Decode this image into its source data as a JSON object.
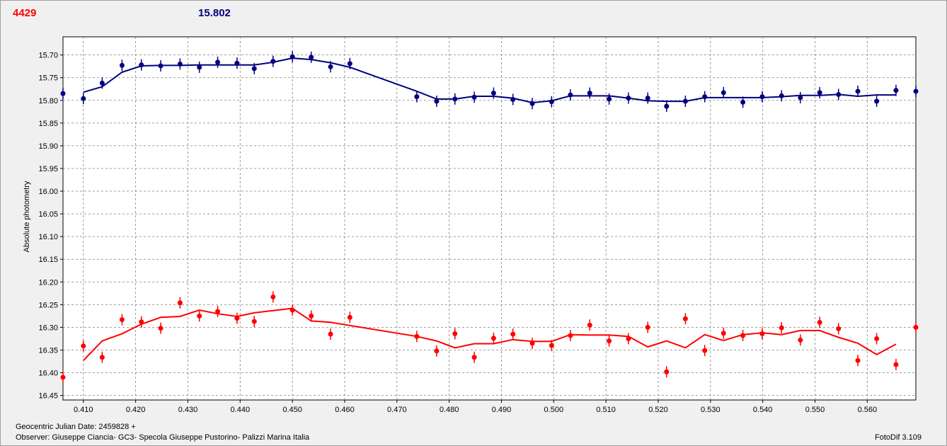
{
  "header": {
    "left_value": "4429",
    "right_value": "15.802"
  },
  "footer": {
    "date_line": "Geocentric Julian Date: 2459828 +",
    "observer_line": "Observer: Giuseppe Ciancia- GC3- Specola Giuseppe Pustorino- Palizzi Marina Italia",
    "software": "FotoDif 3.109"
  },
  "colors": {
    "blue": "#000080",
    "red": "#ff0000",
    "grid": "#808080"
  },
  "chart_data": {
    "type": "scatter",
    "title": "",
    "xlabel": "",
    "ylabel": "Absolute photometry",
    "xlim": [
      0.4061,
      0.5693
    ],
    "ylim": [
      16.46,
      15.66
    ],
    "y_inverted": true,
    "grid": true,
    "x_ticks": [
      "0.410",
      "0.420",
      "0.430",
      "0.440",
      "0.450",
      "0.460",
      "0.470",
      "0.480",
      "0.490",
      "0.500",
      "0.510",
      "0.520",
      "0.530",
      "0.540",
      "0.550",
      "0.560"
    ],
    "y_ticks": [
      "15.70",
      "15.75",
      "15.80",
      "15.85",
      "15.90",
      "15.95",
      "16.00",
      "16.05",
      "16.10",
      "16.15",
      "16.20",
      "16.25",
      "16.30",
      "16.35",
      "16.40",
      "16.45"
    ],
    "series": [
      {
        "color": "#000080",
        "x": [
          0.4061,
          0.41,
          0.4136,
          0.4174,
          0.4211,
          0.4248,
          0.4285,
          0.4322,
          0.4357,
          0.4394,
          0.4427,
          0.4463,
          0.45,
          0.4536,
          0.4573,
          0.461,
          0.4738,
          0.4776,
          0.4811,
          0.4848,
          0.4885,
          0.4922,
          0.4959,
          0.4996,
          0.5032,
          0.5069,
          0.5106,
          0.5143,
          0.518,
          0.5216,
          0.5252,
          0.5289,
          0.5325,
          0.5362,
          0.5399,
          0.5436,
          0.5472,
          0.5509,
          0.5545,
          0.5582,
          0.5618,
          0.5655,
          0.5693
        ],
        "y": [
          15.785,
          15.796,
          15.762,
          15.723,
          15.722,
          15.724,
          15.72,
          15.727,
          15.716,
          15.718,
          15.73,
          15.714,
          15.704,
          15.705,
          15.726,
          15.719,
          15.792,
          15.802,
          15.797,
          15.793,
          15.784,
          15.798,
          15.807,
          15.803,
          15.788,
          15.784,
          15.797,
          15.795,
          15.795,
          15.813,
          15.802,
          15.792,
          15.783,
          15.804,
          15.792,
          15.79,
          15.794,
          15.783,
          15.787,
          15.78,
          15.802,
          15.778,
          15.78
        ],
        "fit_x": [
          0.41,
          0.4136,
          0.4174,
          0.4211,
          0.4248,
          0.4285,
          0.4322,
          0.4357,
          0.4394,
          0.4427,
          0.4463,
          0.45,
          0.4536,
          0.4573,
          0.461,
          0.4738,
          0.4776,
          0.4811,
          0.4848,
          0.4885,
          0.4922,
          0.4959,
          0.4996,
          0.5032,
          0.5069,
          0.5106,
          0.5143,
          0.518,
          0.5216,
          0.5252,
          0.5289,
          0.5325,
          0.5362,
          0.5399,
          0.5436,
          0.5472,
          0.5509,
          0.5545,
          0.5582,
          0.5618,
          0.5655
        ],
        "fit_y": [
          15.782,
          15.77,
          15.738,
          15.724,
          15.723,
          15.723,
          15.722,
          15.722,
          15.722,
          15.722,
          15.716,
          15.707,
          15.71,
          15.717,
          15.727,
          15.78,
          15.797,
          15.797,
          15.791,
          15.791,
          15.795,
          15.805,
          15.801,
          15.79,
          15.79,
          15.79,
          15.795,
          15.801,
          15.802,
          15.802,
          15.794,
          15.794,
          15.794,
          15.794,
          15.792,
          15.789,
          15.789,
          15.787,
          15.791,
          15.788,
          15.788
        ]
      },
      {
        "color": "#ff0000",
        "x": [
          0.4061,
          0.41,
          0.4136,
          0.4174,
          0.4211,
          0.4248,
          0.4285,
          0.4322,
          0.4357,
          0.4394,
          0.4427,
          0.4463,
          0.45,
          0.4536,
          0.4573,
          0.461,
          0.4738,
          0.4776,
          0.4811,
          0.4848,
          0.4885,
          0.4922,
          0.4959,
          0.4996,
          0.5032,
          0.5069,
          0.5106,
          0.5143,
          0.518,
          0.5216,
          0.5252,
          0.5289,
          0.5325,
          0.5362,
          0.5399,
          0.5436,
          0.5472,
          0.5509,
          0.5545,
          0.5582,
          0.5618,
          0.5655,
          0.5693
        ],
        "y": [
          16.41,
          16.341,
          16.366,
          16.283,
          16.288,
          16.302,
          16.246,
          16.275,
          16.265,
          16.28,
          16.287,
          16.233,
          16.262,
          16.275,
          16.315,
          16.278,
          16.32,
          16.352,
          16.314,
          16.366,
          16.324,
          16.315,
          16.335,
          16.34,
          16.318,
          16.295,
          16.33,
          16.325,
          16.3,
          16.398,
          16.281,
          16.351,
          16.313,
          16.318,
          16.314,
          16.301,
          16.328,
          16.289,
          16.303,
          16.373,
          16.325,
          16.382,
          16.3
        ],
        "fit_x": [
          0.41,
          0.4136,
          0.4174,
          0.4211,
          0.4248,
          0.4285,
          0.4322,
          0.4357,
          0.4394,
          0.4427,
          0.4463,
          0.45,
          0.4536,
          0.4573,
          0.461,
          0.4738,
          0.4776,
          0.4811,
          0.4848,
          0.4885,
          0.4922,
          0.4959,
          0.4996,
          0.5032,
          0.5069,
          0.5106,
          0.5143,
          0.518,
          0.5216,
          0.5252,
          0.5289,
          0.5325,
          0.5362,
          0.5399,
          0.5436,
          0.5472,
          0.5509,
          0.5545,
          0.5582,
          0.5618,
          0.5655
        ],
        "fit_y": [
          16.373,
          16.33,
          16.314,
          16.293,
          16.278,
          16.276,
          16.262,
          16.27,
          16.276,
          16.268,
          16.263,
          16.258,
          16.286,
          16.289,
          16.296,
          16.32,
          16.33,
          16.345,
          16.336,
          16.336,
          16.327,
          16.331,
          16.331,
          16.316,
          16.317,
          16.317,
          16.32,
          16.343,
          16.33,
          16.345,
          16.316,
          16.329,
          16.316,
          16.312,
          16.316,
          16.307,
          16.307,
          16.322,
          16.335,
          16.36,
          16.337
        ]
      }
    ]
  }
}
